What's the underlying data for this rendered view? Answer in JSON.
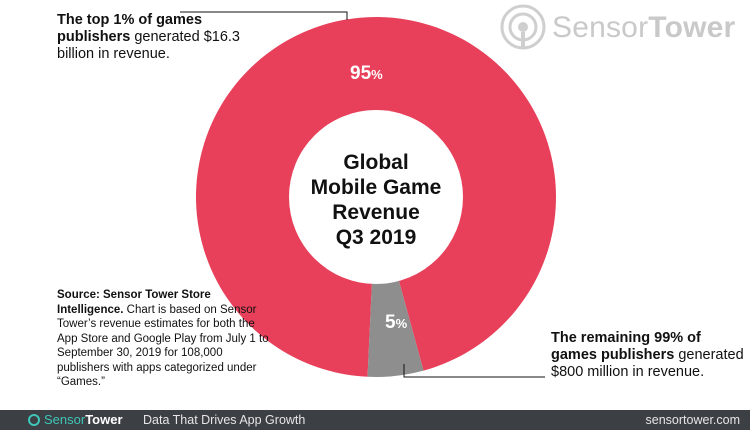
{
  "brand": {
    "name_light": "Sensor",
    "name_bold": "Tower"
  },
  "chart_data": {
    "type": "pie",
    "title": "Global Mobile Game Revenue Q3 2019",
    "title_lines": [
      "Global",
      "Mobile Game",
      "Revenue",
      "Q3 2019"
    ],
    "categories": [
      "Top 1% of games publishers",
      "Remaining 99% of games publishers"
    ],
    "values": [
      95,
      5
    ],
    "labels": [
      {
        "num": "95",
        "unit": "%"
      },
      {
        "num": "5",
        "unit": "%"
      }
    ],
    "colors": [
      "#e8405a",
      "#8e8e8e"
    ],
    "donut": true
  },
  "annotations": {
    "top": {
      "bold": "The top 1% of games publishers",
      "rest": "generated $16.3 billion in revenue."
    },
    "bottom": {
      "bold": "The remaining 99% of games publishers",
      "rest": "generated $800 million in revenue."
    }
  },
  "source": {
    "bold": "Source: Sensor Tower Store Intelligence.",
    "rest": "Chart is based on Sensor Tower’s revenue estimates for both the App Store and Google Play from July 1 to September 30, 2019 for 108,000 publishers with apps categorized under “Games.”"
  },
  "footer": {
    "logo_light": "Sensor",
    "logo_bold": "Tower",
    "tagline": "Data That Drives App Growth",
    "url": "sensortower.com"
  }
}
